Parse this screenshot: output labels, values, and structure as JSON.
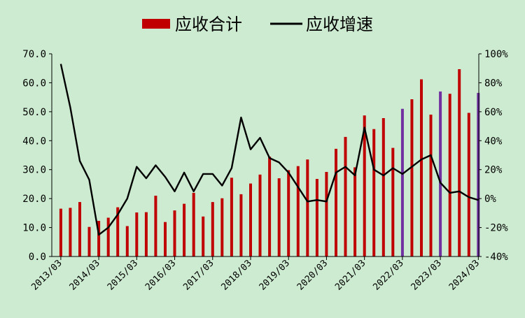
{
  "chart_data": {
    "type": "bar",
    "title": "",
    "legend": {
      "position": "top-center",
      "items": [
        {
          "label": "应收合计",
          "symbol": "bar",
          "color": "#c00000"
        },
        {
          "label": "应收增速",
          "symbol": "line",
          "color": "#000000"
        }
      ]
    },
    "grid": false,
    "x_tick_labels": [
      "2013/03",
      "2014/03",
      "2015/03",
      "2016/03",
      "2017/03",
      "2018/03",
      "2019/03",
      "2020/03",
      "2021/03",
      "2022/03",
      "2023/03",
      "2024/03"
    ],
    "left_axis": {
      "ylim": [
        0,
        70
      ],
      "ticks": [
        0,
        10,
        20,
        30,
        40,
        50,
        60,
        70
      ],
      "tick_labels": [
        "0.0",
        "10.0",
        "20.0",
        "30.0",
        "40.0",
        "50.0",
        "60.0",
        "70.0"
      ]
    },
    "right_axis": {
      "ylim": [
        -40,
        100
      ],
      "ticks": [
        -40,
        -20,
        0,
        20,
        40,
        60,
        80,
        100
      ],
      "tick_labels": [
        "-40%",
        "-20%",
        "0%",
        "20%",
        "40%",
        "60%",
        "80%",
        "100%"
      ]
    },
    "series": [
      {
        "name": "应收合计",
        "type": "bar",
        "axis": "left",
        "color": "#c00000",
        "highlight_color": "#7030a0",
        "highlight_indices": [
          36,
          40,
          44
        ],
        "values": [
          16.5,
          16.8,
          18.8,
          10.2,
          12.3,
          13.4,
          17.0,
          10.5,
          15.2,
          15.3,
          21.0,
          11.9,
          15.9,
          18.2,
          22.0,
          13.8,
          18.8,
          20.1,
          27.2,
          21.5,
          25.2,
          28.3,
          34.5,
          27.0,
          29.8,
          31.2,
          33.5,
          26.8,
          29.2,
          37.2,
          41.3,
          30.8,
          48.7,
          44.0,
          47.8,
          37.5,
          51.0,
          54.3,
          61.2,
          49.0,
          57.0,
          56.2,
          64.7,
          49.6,
          56.5
        ]
      },
      {
        "name": "应收增速",
        "type": "line",
        "axis": "right",
        "color": "#000000",
        "values": [
          93,
          63,
          26,
          13,
          -25,
          -20,
          -11,
          0,
          22,
          14,
          23,
          15,
          5,
          18,
          5,
          17,
          17,
          9,
          21,
          56,
          34,
          42,
          28,
          25,
          18,
          8,
          -2,
          -1,
          -2,
          18,
          22,
          16,
          49,
          20,
          16,
          21,
          17,
          22,
          27,
          30,
          11,
          4,
          5,
          1,
          -1
        ]
      }
    ]
  }
}
